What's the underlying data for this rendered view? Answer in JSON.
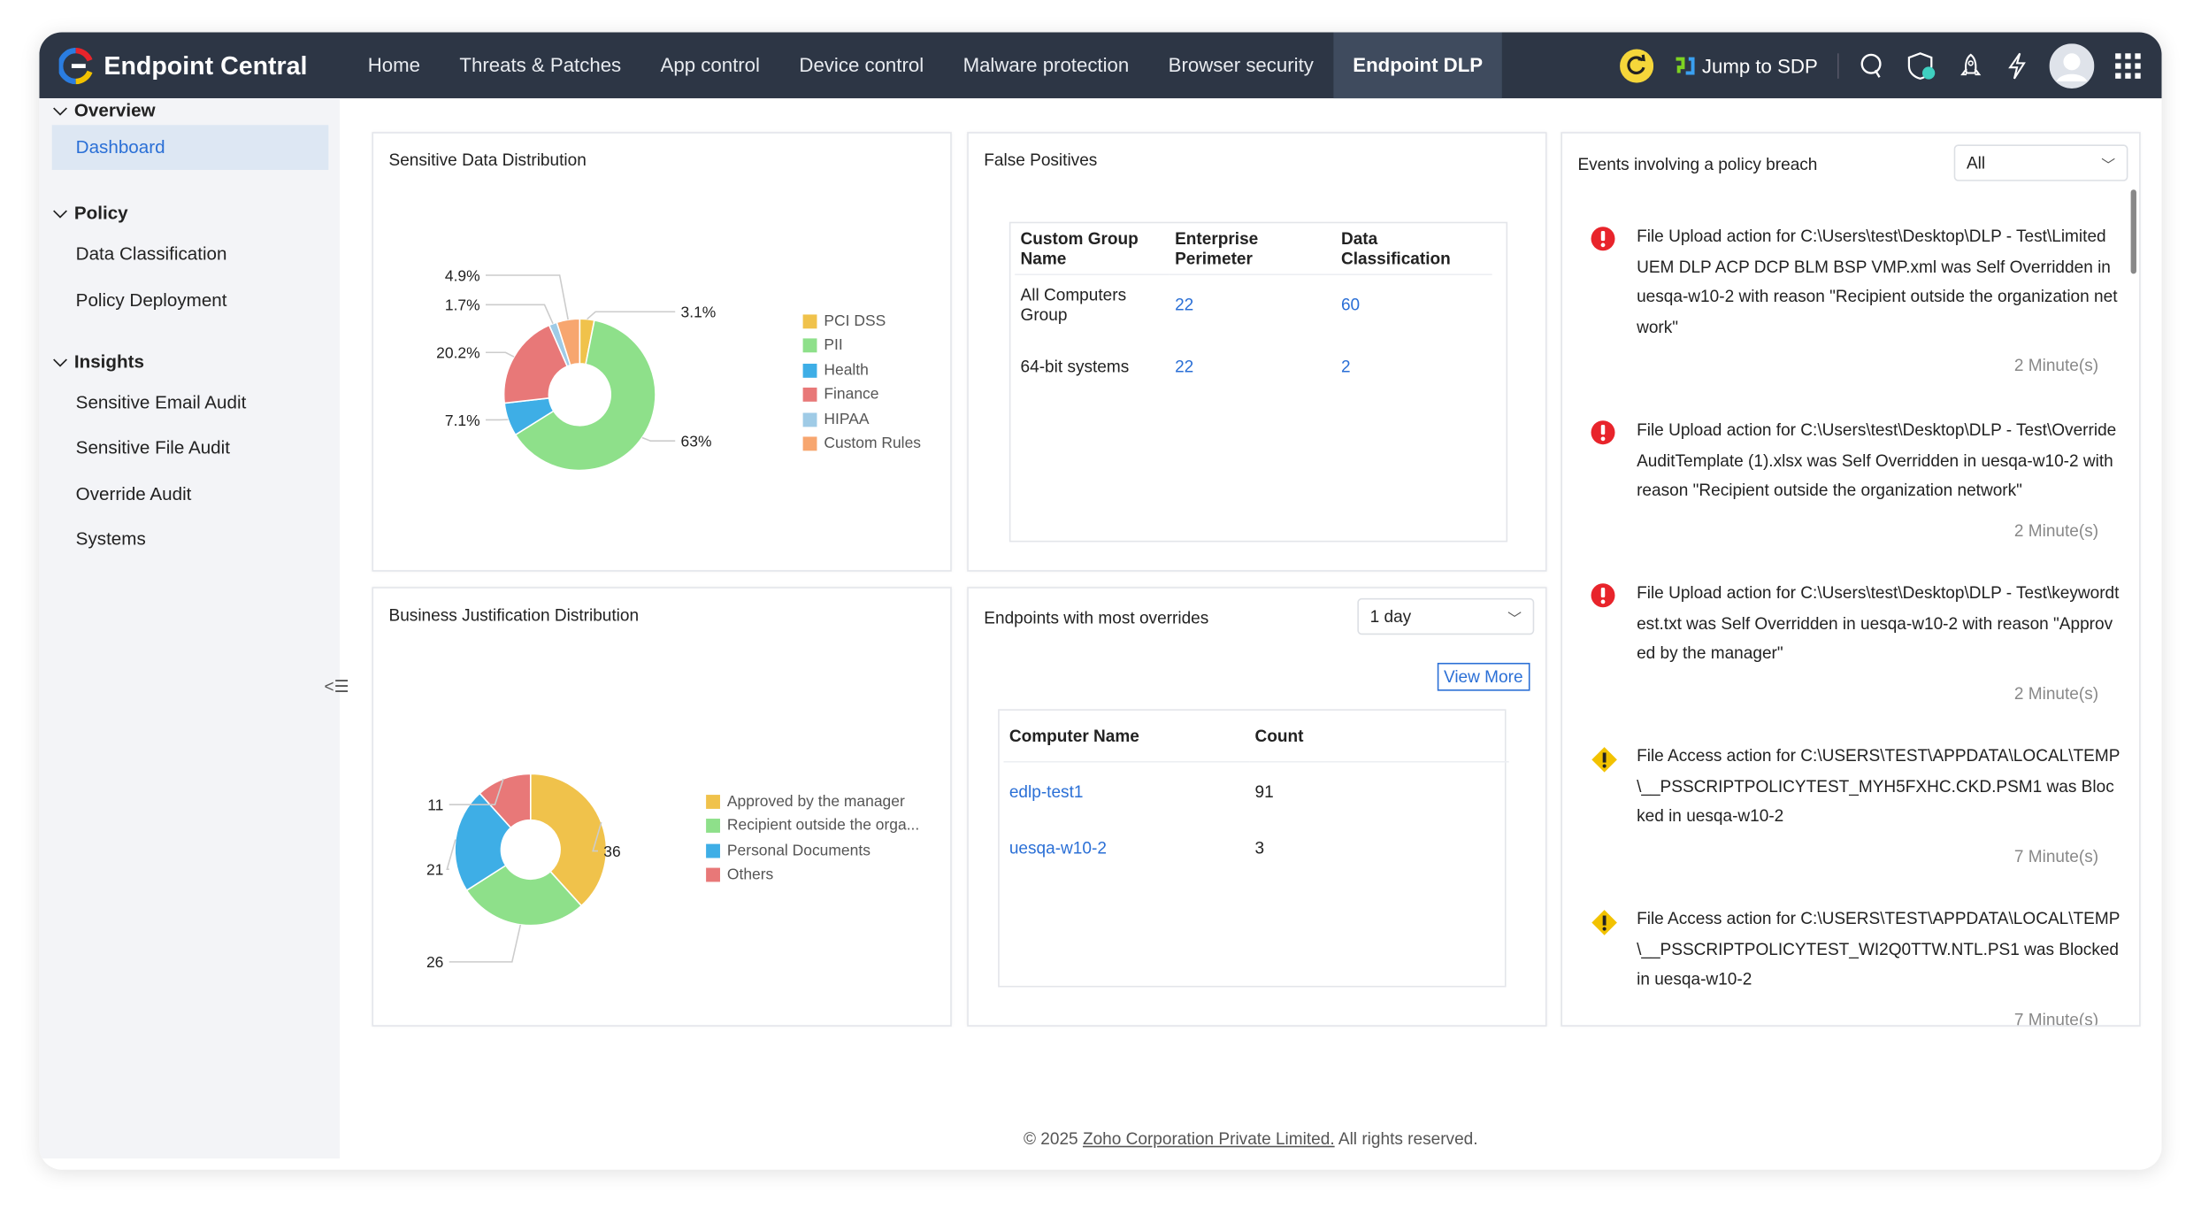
{
  "app": {
    "title": "Endpoint Central"
  },
  "nav": [
    {
      "label": "Home"
    },
    {
      "label": "Threats & Patches"
    },
    {
      "label": "App control"
    },
    {
      "label": "Device control"
    },
    {
      "label": "Malware protection"
    },
    {
      "label": "Browser security"
    },
    {
      "label": "Endpoint DLP",
      "active": true
    }
  ],
  "topright": {
    "jump_label": "Jump to SDP",
    "icons": [
      "refresh-icon",
      "jump-sdp-icon",
      "search-icon",
      "shield-icon",
      "rocket-icon",
      "lightning-icon",
      "avatar",
      "app-grid-icon"
    ]
  },
  "sidebar": {
    "sections": [
      {
        "label": "Overview",
        "items": [
          {
            "label": "Dashboard",
            "active": true
          }
        ]
      },
      {
        "label": "Policy",
        "items": [
          {
            "label": "Data Classification"
          },
          {
            "label": "Policy Deployment"
          }
        ]
      },
      {
        "label": "Insights",
        "items": [
          {
            "label": "Sensitive Email Audit"
          },
          {
            "label": "Sensitive File Audit"
          },
          {
            "label": "Override Audit"
          },
          {
            "label": "Systems"
          }
        ]
      }
    ]
  },
  "colors": {
    "accent": "#2a6fd6",
    "topbar": "#2d3645",
    "error": "#e8242b",
    "warning": "#f2c200"
  },
  "chart_data": [
    {
      "type": "pie",
      "title": "Sensitive Data Distribution",
      "donut": true,
      "categories": [
        "PCI DSS",
        "PII",
        "Health",
        "Finance",
        "HIPAA",
        "Custom Rules"
      ],
      "values": [
        3.1,
        63,
        7.1,
        20.2,
        1.7,
        4.9
      ],
      "labels": [
        "3.1%",
        "63%",
        "7.1%",
        "20.2%",
        "1.7%",
        "4.9%"
      ],
      "colors": [
        "#f0c24b",
        "#8ee08a",
        "#3eaee6",
        "#e87878",
        "#9fcbe6",
        "#f7a66f"
      ],
      "legend": "right"
    },
    {
      "type": "pie",
      "title": "Business Justification Distribution",
      "donut": true,
      "categories": [
        "Approved by the manager",
        "Recipient outside the orga...",
        "Personal Documents",
        "Others"
      ],
      "values": [
        36,
        26,
        21,
        11
      ],
      "labels": [
        "36",
        "26",
        "21",
        "11"
      ],
      "colors": [
        "#f0c24b",
        "#8ee08a",
        "#3eaee6",
        "#e87878"
      ],
      "legend": "right"
    }
  ],
  "false_positives": {
    "title": "False Positives",
    "columns": [
      "Custom Group Name",
      "Enterprise Perimeter",
      "Data Classification"
    ],
    "rows": [
      [
        "All Computers Group",
        "22",
        "60"
      ],
      [
        "64-bit systems",
        "22",
        "2"
      ]
    ]
  },
  "endpoints": {
    "title": "Endpoints with most overrides",
    "period": "1 day",
    "view_more": "View More",
    "columns": [
      "Computer Name",
      "Count"
    ],
    "rows": [
      [
        "edlp-test1",
        "91"
      ],
      [
        "uesqa-w10-2",
        "3"
      ]
    ]
  },
  "events": {
    "title": "Events involving a policy breach",
    "filter": "All",
    "items": [
      {
        "severity": "error",
        "text": "File Upload action for C:\\Users\\test\\Desktop\\DLP - Test\\Limited UEM DLP ACP DCP BLM BSP VMP.xml was Self Overridden in uesqa-w10-2 with reason \"Recipient outside the organization network\"",
        "time": "2 Minute(s)"
      },
      {
        "severity": "error",
        "text": "File Upload action for C:\\Users\\test\\Desktop\\DLP - Test\\OverrideAuditTemplate (1).xlsx was Self Overridden in uesqa-w10-2 with reason \"Recipient outside the organization network\"",
        "time": "2 Minute(s)"
      },
      {
        "severity": "error",
        "text": "File Upload action for C:\\Users\\test\\Desktop\\DLP - Test\\keywordtest.txt was Self Overridden in uesqa-w10-2 with reason \"Approved by the manager\"",
        "time": "2 Minute(s)"
      },
      {
        "severity": "warning",
        "text": "File Access action for C:\\USERS\\TEST\\APPDATA\\LOCAL\\TEMP\\__PSSCRIPTPOLICYTEST_MYH5FXHC.CKD.PSM1 was Blocked in uesqa-w10-2",
        "time": "7 Minute(s)"
      },
      {
        "severity": "warning",
        "text": "File Access action for C:\\USERS\\TEST\\APPDATA\\LOCAL\\TEMP\\__PSSCRIPTPOLICYTEST_WI2Q0TTW.NTL.PS1 was Blocked in uesqa-w10-2",
        "time": "7 Minute(s)"
      }
    ]
  },
  "footer": {
    "prefix": "© 2025 ",
    "link": "Zoho Corporation Private Limited.",
    "suffix": " All rights reserved."
  }
}
